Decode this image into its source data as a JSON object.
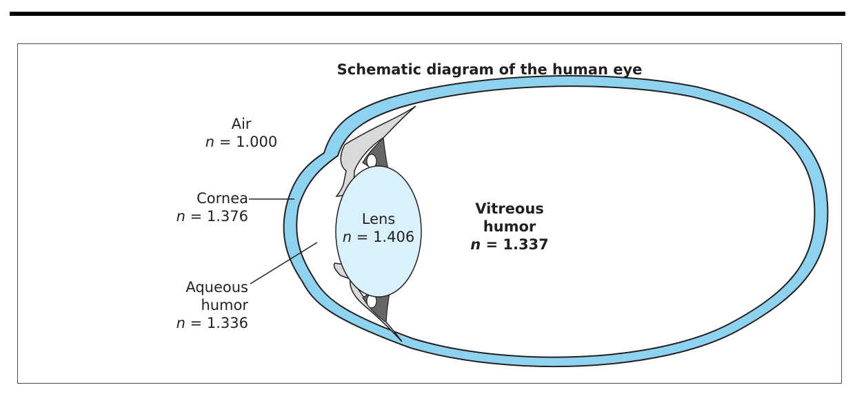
{
  "diagram": {
    "title": "Schematic diagram of the human eye",
    "colors": {
      "sclera_cornea": "#8dd3ef",
      "lens": "#d9f1fb",
      "iris_ciliary": "#d9d9d9",
      "zonule": "#666666",
      "outline": "#231f20"
    },
    "labels": {
      "air": {
        "name": "Air",
        "n_symbol": "n",
        "n_value": "= 1.000"
      },
      "cornea": {
        "name": "Cornea",
        "n_symbol": "n",
        "n_value": "= 1.376"
      },
      "aqueous": {
        "name_line1": "Aqueous",
        "name_line2": "humor",
        "n_symbol": "n",
        "n_value": "= 1.336"
      },
      "lens": {
        "name": "Lens",
        "n_symbol": "n",
        "n_value": "= 1.406"
      },
      "vitreous": {
        "name_line1": "Vitreous",
        "name_line2": "humor",
        "n_symbol": "n",
        "n_value": "= 1.337"
      }
    }
  }
}
